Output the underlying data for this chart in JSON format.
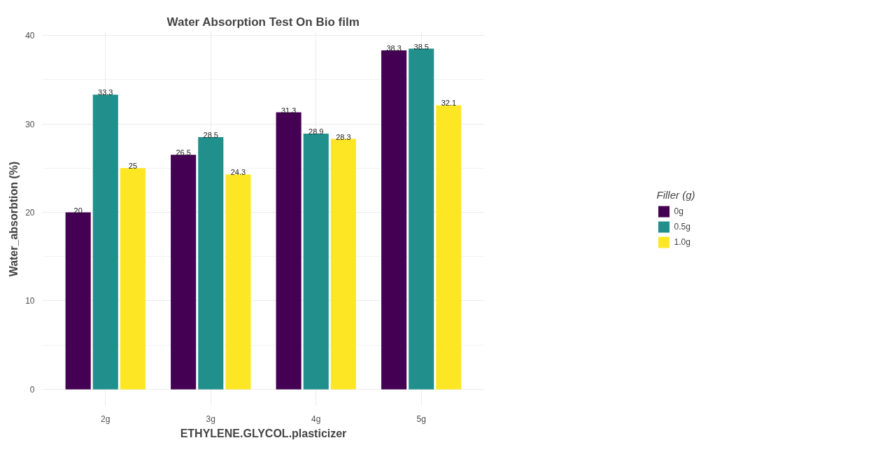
{
  "chart_data": {
    "type": "bar",
    "title": "Water Absorption Test On Bio film",
    "xlabel": "ETHYLENE.GLYCOL.plasticizer",
    "ylabel": "Water_absorbtion (%)",
    "legend_title": "Filler (g)",
    "categories": [
      "2g",
      "3g",
      "4g",
      "5g"
    ],
    "series": [
      {
        "name": "0g",
        "color": "#440154",
        "values": [
          20,
          26.5,
          31.3,
          38.3
        ]
      },
      {
        "name": "0.5g",
        "color": "#21908c",
        "values": [
          33.3,
          28.5,
          28.9,
          38.5
        ]
      },
      {
        "name": "1.0g",
        "color": "#fde725",
        "values": [
          25,
          24.3,
          28.3,
          32.1
        ]
      }
    ],
    "ylim": [
      -1.9,
      40.4
    ],
    "yticks": [
      0,
      10,
      20,
      30,
      40
    ],
    "grid": true,
    "legend": "right",
    "data_labels": true
  }
}
